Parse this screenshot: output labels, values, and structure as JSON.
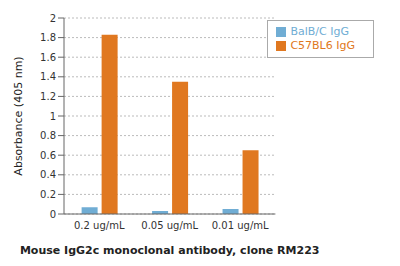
{
  "chart_data": {
    "type": "bar",
    "categories": [
      "0.2 ug/mL",
      "0.05 ug/mL",
      "0.01 ug/mL"
    ],
    "series": [
      {
        "name": "BalB/C IgG",
        "color": "#70ADD4",
        "values": [
          0.07,
          0.03,
          0.05
        ]
      },
      {
        "name": "C57BL6 IgG",
        "color": "#E07820",
        "values": [
          1.83,
          1.35,
          0.65
        ]
      }
    ],
    "xlabel": "Mouse IgG2c monoclonal antibody, clone RM223",
    "ylabel": "Absorbance (405 nm)",
    "ylim": [
      0,
      2.0
    ],
    "yticks": [
      0,
      0.2,
      0.4,
      0.6,
      0.8,
      1,
      1.2,
      1.4,
      1.6,
      1.8,
      2
    ],
    "grid": true,
    "legend": "upper right"
  }
}
